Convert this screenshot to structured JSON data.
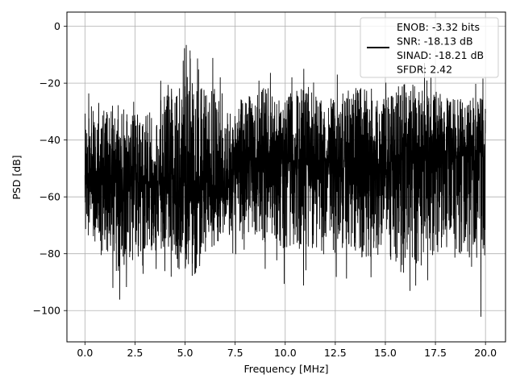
{
  "chart_data": {
    "type": "line",
    "title": "",
    "xlabel": "Frequency [MHz]",
    "ylabel": "PSD [dB]",
    "xlim": [
      -0.9,
      21.0
    ],
    "ylim": [
      -111,
      5
    ],
    "xticks": [
      0.0,
      2.5,
      5.0,
      7.5,
      10.0,
      12.5,
      15.0,
      17.5,
      20.0
    ],
    "xtick_labels": [
      "0.0",
      "2.5",
      "5.0",
      "7.5",
      "10.0",
      "12.5",
      "15.0",
      "17.5",
      "20.0"
    ],
    "yticks": [
      0,
      -20,
      -40,
      -60,
      -80,
      -100
    ],
    "ytick_labels": [
      "0",
      "−20",
      "−40",
      "−60",
      "−80",
      "−100"
    ],
    "grid": true,
    "legend_placement": "top-right",
    "series": [
      {
        "name": "ENOB: -3.32 bits\nSNR: -18.13 dB\nSINAD: -18.21 dB\nSFDR: 2.42",
        "color": "#000000",
        "x_range": [
          0.0,
          20.0
        ],
        "noise_band": {
          "low_envelope": [
            [
              0.0,
              -78
            ],
            [
              0.5,
              -92
            ],
            [
              1.0,
              -96
            ],
            [
              1.6,
              -103
            ],
            [
              2.0,
              -98
            ],
            [
              2.5,
              -93
            ],
            [
              3.0,
              -90
            ],
            [
              3.5,
              -89
            ],
            [
              4.0,
              -87
            ],
            [
              4.5,
              -91
            ],
            [
              5.0,
              -93
            ],
            [
              5.5,
              -104
            ],
            [
              6.0,
              -88
            ],
            [
              6.5,
              -84
            ],
            [
              7.0,
              -78
            ],
            [
              7.5,
              -86
            ],
            [
              8.0,
              -88
            ],
            [
              9.0,
              -90
            ],
            [
              10.0,
              -91
            ],
            [
              11.0,
              -92
            ],
            [
              12.0,
              -93
            ],
            [
              13.0,
              -91
            ],
            [
              14.0,
              -95
            ],
            [
              15.0,
              -92
            ],
            [
              16.0,
              -106
            ],
            [
              17.0,
              -93
            ],
            [
              18.0,
              -96
            ],
            [
              19.0,
              -97
            ],
            [
              19.9,
              -106
            ],
            [
              20.0,
              -86
            ]
          ],
          "high_envelope": [
            [
              0.0,
              -19
            ],
            [
              0.5,
              -22
            ],
            [
              1.0,
              -24
            ],
            [
              1.6,
              -20
            ],
            [
              2.0,
              -22
            ],
            [
              2.5,
              -24
            ],
            [
              3.0,
              -23
            ],
            [
              3.5,
              -22
            ],
            [
              4.0,
              -12
            ],
            [
              4.5,
              -16
            ],
            [
              5.0,
              -4
            ],
            [
              5.5,
              -5
            ],
            [
              6.0,
              -10
            ],
            [
              6.5,
              -11
            ],
            [
              7.0,
              -22
            ],
            [
              7.5,
              -20
            ],
            [
              8.0,
              -19
            ],
            [
              9.0,
              -13
            ],
            [
              10.0,
              -17
            ],
            [
              11.0,
              -12
            ],
            [
              12.0,
              -18
            ],
            [
              13.0,
              -14
            ],
            [
              14.0,
              -11
            ],
            [
              15.0,
              -19
            ],
            [
              16.0,
              -12
            ],
            [
              17.0,
              -10
            ],
            [
              18.0,
              -19
            ],
            [
              19.0,
              -20
            ],
            [
              20.0,
              -17
            ]
          ],
          "center": [
            [
              0.0,
              -50
            ],
            [
              2.5,
              -55
            ],
            [
              5.0,
              -55
            ],
            [
              7.0,
              -60
            ],
            [
              7.5,
              -45
            ],
            [
              10.0,
              -48
            ],
            [
              12.5,
              -50
            ],
            [
              15.0,
              -48
            ],
            [
              17.5,
              -45
            ],
            [
              20.0,
              -46
            ]
          ]
        }
      }
    ]
  }
}
